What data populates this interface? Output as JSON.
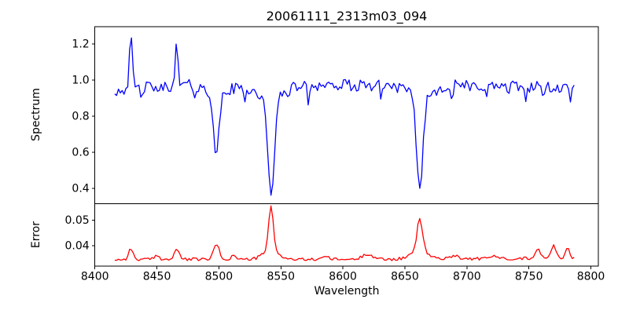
{
  "figure": {
    "title": "20061111_2313m03_094",
    "background": "#ffffff",
    "text_color": "#000000",
    "spine_color": "#000000",
    "grid": false,
    "legend": null
  },
  "axis": {
    "xlabel": "Wavelength",
    "xlim": [
      8400,
      8806
    ],
    "xticks": [
      8400,
      8450,
      8500,
      8550,
      8600,
      8650,
      8700,
      8750,
      8800
    ],
    "xtick_labels": [
      "8400",
      "8450",
      "8500",
      "8550",
      "8600",
      "8650",
      "8700",
      "8750",
      "8800"
    ]
  },
  "chart_data": [
    {
      "type": "line",
      "name": "spectrum",
      "ylabel": "Spectrum",
      "color": "#0000ff",
      "xlim": [
        8400,
        8806
      ],
      "ylim": [
        0.317,
        1.296
      ],
      "yticks": [
        0.4,
        0.6,
        0.8,
        1.0,
        1.2
      ],
      "ytick_labels": [
        "0.4",
        "0.6",
        "0.8",
        "1.0",
        "1.2"
      ],
      "x_start": 8416,
      "x_end": 8786,
      "x_step": 1.5,
      "continuum_anchors": [
        [
          8416,
          0.94
        ],
        [
          8426,
          0.958
        ],
        [
          8445,
          0.96
        ],
        [
          8470,
          0.974
        ],
        [
          8490,
          0.966
        ],
        [
          8512,
          0.96
        ],
        [
          8530,
          0.968
        ],
        [
          8560,
          0.972
        ],
        [
          8590,
          0.976
        ],
        [
          8620,
          0.97
        ],
        [
          8650,
          0.974
        ],
        [
          8695,
          0.972
        ],
        [
          8725,
          0.966
        ],
        [
          8755,
          0.962
        ],
        [
          8775,
          0.958
        ],
        [
          8786,
          0.944
        ]
      ],
      "gaussian_features": [
        [
          8429,
          0.265,
          1.2
        ],
        [
          8466,
          0.24,
          0.9
        ],
        [
          8498,
          -0.34,
          2.0
        ],
        [
          8498,
          -0.055,
          7
        ],
        [
          8542,
          -0.52,
          2.6
        ],
        [
          8542,
          -0.08,
          10
        ],
        [
          8662,
          -0.5,
          2.4
        ],
        [
          8662,
          -0.08,
          9
        ],
        [
          8437,
          -0.06,
          0.8
        ],
        [
          8452,
          -0.05,
          0.8
        ],
        [
          8481,
          -0.055,
          0.8
        ],
        [
          8521,
          -0.05,
          0.8
        ],
        [
          8572,
          -0.09,
          0.9
        ],
        [
          8597,
          -0.05,
          0.8
        ],
        [
          8612,
          -0.07,
          0.8
        ],
        [
          8631,
          -0.055,
          0.8
        ],
        [
          8688,
          -0.09,
          0.9
        ],
        [
          8702,
          -0.04,
          0.8
        ],
        [
          8716,
          -0.055,
          0.8
        ],
        [
          8733,
          -0.05,
          0.8
        ],
        [
          8747,
          -0.06,
          0.8
        ],
        [
          8762,
          -0.045,
          0.8
        ],
        [
          8771,
          -0.06,
          0.8
        ],
        [
          8783,
          -0.05,
          0.8
        ]
      ],
      "noise_amp": 0.033,
      "noise_seed": 42,
      "absorption_lines": [
        {
          "center": 8498,
          "min_value": 0.58
        },
        {
          "center": 8542,
          "min_value": 0.37
        },
        {
          "center": 8662,
          "min_value": 0.39
        }
      ],
      "emission_spikes": [
        {
          "center": 8429,
          "peak_value": 1.22
        },
        {
          "center": 8466,
          "peak_value": 1.18
        }
      ],
      "continuum_level": 0.97
    },
    {
      "type": "line",
      "name": "error",
      "ylabel": "Error",
      "color": "#ff0000",
      "xlim": [
        8400,
        8806
      ],
      "ylim": [
        0.0319,
        0.0566
      ],
      "yticks": [
        0.04,
        0.05
      ],
      "ytick_labels": [
        "0.04",
        "0.05"
      ],
      "x_start": 8416,
      "x_end": 8786,
      "x_step": 1.5,
      "continuum_anchors": [
        [
          8416,
          0.0345
        ],
        [
          8480,
          0.0346
        ],
        [
          8560,
          0.0345
        ],
        [
          8640,
          0.0346
        ],
        [
          8700,
          0.0348
        ],
        [
          8760,
          0.035
        ],
        [
          8786,
          0.0352
        ]
      ],
      "gaussian_features": [
        [
          8429,
          0.0042,
          1.8
        ],
        [
          8450,
          0.0015,
          2
        ],
        [
          8466,
          0.0042,
          1.8
        ],
        [
          8498,
          0.006,
          2.2
        ],
        [
          8512,
          0.0015,
          2
        ],
        [
          8542,
          0.017,
          1.8
        ],
        [
          8542,
          0.004,
          6
        ],
        [
          8585,
          0.0012,
          3
        ],
        [
          8620,
          0.0022,
          4
        ],
        [
          8662,
          0.013,
          2.2
        ],
        [
          8662,
          0.003,
          7
        ],
        [
          8690,
          0.0015,
          3
        ],
        [
          8722,
          0.001,
          3
        ],
        [
          8757,
          0.004,
          2
        ],
        [
          8770,
          0.0048,
          2
        ],
        [
          8781,
          0.0042,
          1.5
        ]
      ],
      "noise_amp": 0.0006,
      "noise_seed": 99,
      "baseline_level": 0.035,
      "peaks": [
        {
          "center": 8542,
          "peak_value": 0.0558
        },
        {
          "center": 8662,
          "peak_value": 0.052
        },
        {
          "center": 8498,
          "peak_value": 0.042
        },
        {
          "center": 8770,
          "peak_value": 0.042
        }
      ]
    }
  ]
}
